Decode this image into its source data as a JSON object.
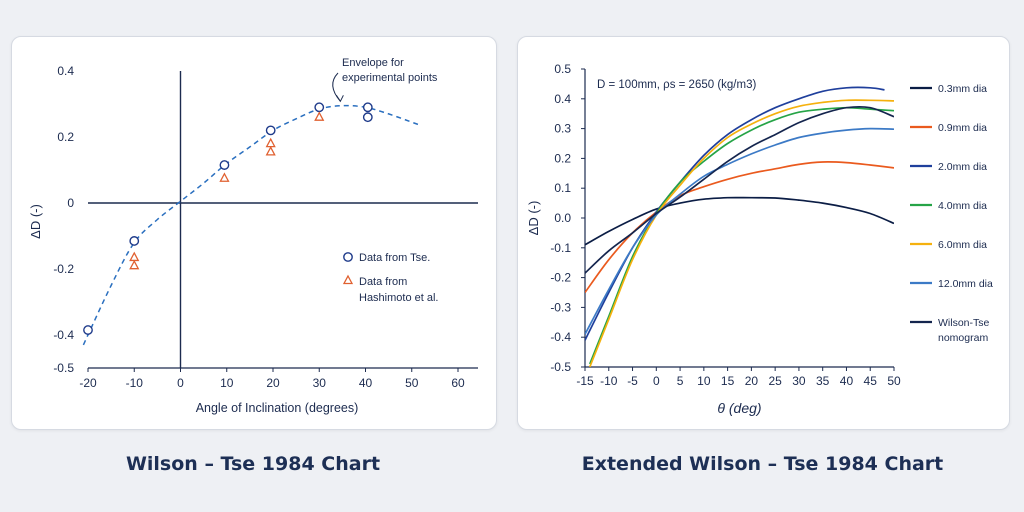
{
  "captions": {
    "left": "Wilson – Tse 1984 Chart",
    "right": "Extended Wilson – Tse 1984 Chart"
  },
  "chart_data": [
    {
      "type": "scatter",
      "title": "",
      "caption": "Wilson – Tse 1984 Chart",
      "xlabel": "Angle of Inclination (degrees)",
      "ylabel": "ΔD (-)",
      "xlim": [
        -20,
        60
      ],
      "ylim": [
        -0.5,
        0.4
      ],
      "xticks": [
        -20,
        -10,
        0,
        10,
        20,
        30,
        40,
        50,
        60
      ],
      "yticks": [
        0.4,
        0.2,
        0,
        -0.2,
        -0.4,
        -0.5
      ],
      "ytick_labels": [
        "0.4",
        "0.2",
        "0",
        "-0.2",
        "-0.4",
        "-0.5"
      ],
      "grid": false,
      "legend_position": "right",
      "annotation": {
        "text": [
          "Envelope for",
          "experimental points"
        ],
        "target": [
          35,
          0.29
        ]
      },
      "series": [
        {
          "name": "Data from Tse.",
          "marker": "circle",
          "color": "#1e3a8a",
          "points": [
            [
              -20,
              -0.385
            ],
            [
              -10,
              -0.115
            ],
            [
              9.5,
              0.115
            ],
            [
              19.5,
              0.22
            ],
            [
              30,
              0.29
            ],
            [
              40.5,
              0.29
            ],
            [
              40.5,
              0.26
            ]
          ]
        },
        {
          "name": "Data from Hashimoto et al.",
          "marker": "triangle",
          "color": "#e06030",
          "points": [
            [
              -10,
              -0.165
            ],
            [
              -10,
              -0.19
            ],
            [
              9.5,
              0.075
            ],
            [
              19.5,
              0.18
            ],
            [
              19.5,
              0.155
            ],
            [
              30,
              0.26
            ]
          ]
        }
      ],
      "envelope": {
        "style": "dashed",
        "color": "#2a6fbf",
        "points": [
          [
            -21,
            -0.43
          ],
          [
            -15,
            -0.25
          ],
          [
            -10,
            -0.12
          ],
          [
            -5,
            -0.05
          ],
          [
            0,
            0.005
          ],
          [
            5,
            0.06
          ],
          [
            10,
            0.12
          ],
          [
            15,
            0.17
          ],
          [
            20,
            0.22
          ],
          [
            25,
            0.255
          ],
          [
            30,
            0.285
          ],
          [
            35,
            0.295
          ],
          [
            40,
            0.29
          ],
          [
            45,
            0.27
          ],
          [
            50,
            0.245
          ],
          [
            52,
            0.235
          ]
        ]
      }
    },
    {
      "type": "line",
      "title": "",
      "caption": "Extended Wilson – Tse 1984 Chart",
      "annotation": "D = 100mm, ρs = 2650 (kg/m3)",
      "xlabel": "θ (deg)",
      "ylabel": "ΔD (-)",
      "xlim": [
        -15,
        50
      ],
      "ylim": [
        -0.5,
        0.5
      ],
      "xticks": [
        -15,
        -10,
        -5,
        0,
        5,
        10,
        15,
        20,
        25,
        30,
        35,
        40,
        45,
        50
      ],
      "yticks": [
        0.5,
        0.4,
        0.3,
        0.2,
        0.1,
        0.0,
        -0.1,
        -0.2,
        -0.3,
        -0.4,
        -0.5
      ],
      "ytick_labels": [
        "0.5",
        "0.4",
        "0.3",
        "0.2",
        "0.1",
        "0.0",
        "-0.1",
        "-0.2",
        "-0.3",
        "-0.4",
        "-0.5"
      ],
      "grid": false,
      "legend_position": "right",
      "series": [
        {
          "name": "0.3mm dia",
          "color": "#0b1d45",
          "points": [
            [
              -15,
              -0.09
            ],
            [
              -10,
              -0.045
            ],
            [
              -5,
              -0.005
            ],
            [
              0,
              0.03
            ],
            [
              5,
              0.05
            ],
            [
              10,
              0.063
            ],
            [
              15,
              0.068
            ],
            [
              20,
              0.068
            ],
            [
              25,
              0.067
            ],
            [
              30,
              0.06
            ],
            [
              35,
              0.05
            ],
            [
              40,
              0.035
            ],
            [
              45,
              0.015
            ],
            [
              50,
              -0.018
            ]
          ]
        },
        {
          "name": "0.9mm dia",
          "color": "#ea5a1e",
          "points": [
            [
              -15,
              -0.25
            ],
            [
              -10,
              -0.14
            ],
            [
              -5,
              -0.05
            ],
            [
              0,
              0.02
            ],
            [
              5,
              0.075
            ],
            [
              10,
              0.105
            ],
            [
              15,
              0.13
            ],
            [
              20,
              0.15
            ],
            [
              25,
              0.165
            ],
            [
              30,
              0.18
            ],
            [
              35,
              0.188
            ],
            [
              40,
              0.186
            ],
            [
              45,
              0.178
            ],
            [
              50,
              0.168
            ]
          ]
        },
        {
          "name": "2.0mm dia",
          "color": "#1f3f9c",
          "points": [
            [
              -15,
              -0.41
            ],
            [
              -10,
              -0.25
            ],
            [
              -5,
              -0.1
            ],
            [
              0,
              0.02
            ],
            [
              5,
              0.12
            ],
            [
              10,
              0.21
            ],
            [
              15,
              0.28
            ],
            [
              20,
              0.33
            ],
            [
              25,
              0.37
            ],
            [
              30,
              0.4
            ],
            [
              35,
              0.425
            ],
            [
              40,
              0.437
            ],
            [
              45,
              0.437
            ],
            [
              48,
              0.43
            ]
          ]
        },
        {
          "name": "4.0mm dia",
          "color": "#26a447",
          "points": [
            [
              -14,
              -0.49
            ],
            [
              -10,
              -0.33
            ],
            [
              -5,
              -0.13
            ],
            [
              0,
              0.015
            ],
            [
              5,
              0.12
            ],
            [
              10,
              0.19
            ],
            [
              15,
              0.25
            ],
            [
              20,
              0.295
            ],
            [
              25,
              0.33
            ],
            [
              30,
              0.355
            ],
            [
              35,
              0.365
            ],
            [
              40,
              0.37
            ],
            [
              45,
              0.365
            ],
            [
              50,
              0.36
            ]
          ]
        },
        {
          "name": "6.0mm dia",
          "color": "#f5b10e",
          "points": [
            [
              -14,
              -0.5
            ],
            [
              -10,
              -0.34
            ],
            [
              -5,
              -0.14
            ],
            [
              0,
              0.01
            ],
            [
              5,
              0.11
            ],
            [
              10,
              0.2
            ],
            [
              15,
              0.27
            ],
            [
              20,
              0.315
            ],
            [
              25,
              0.35
            ],
            [
              30,
              0.375
            ],
            [
              35,
              0.388
            ],
            [
              40,
              0.395
            ],
            [
              45,
              0.395
            ],
            [
              50,
              0.393
            ]
          ]
        },
        {
          "name": "12.0mm dia",
          "color": "#3c7ac6",
          "points": [
            [
              -15,
              -0.39
            ],
            [
              -10,
              -0.24
            ],
            [
              -5,
              -0.1
            ],
            [
              0,
              0.01
            ],
            [
              5,
              0.08
            ],
            [
              10,
              0.14
            ],
            [
              15,
              0.18
            ],
            [
              20,
              0.215
            ],
            [
              25,
              0.245
            ],
            [
              30,
              0.27
            ],
            [
              35,
              0.285
            ],
            [
              40,
              0.295
            ],
            [
              45,
              0.3
            ],
            [
              50,
              0.298
            ]
          ]
        },
        {
          "name": "Wilson-Tse nomogram",
          "color": "#14254e",
          "points": [
            [
              -15,
              -0.185
            ],
            [
              -10,
              -0.11
            ],
            [
              -5,
              -0.05
            ],
            [
              0,
              0.015
            ],
            [
              5,
              0.07
            ],
            [
              10,
              0.13
            ],
            [
              15,
              0.19
            ],
            [
              20,
              0.24
            ],
            [
              25,
              0.28
            ],
            [
              30,
              0.32
            ],
            [
              35,
              0.35
            ],
            [
              40,
              0.37
            ],
            [
              45,
              0.37
            ],
            [
              50,
              0.34
            ]
          ]
        }
      ]
    }
  ]
}
